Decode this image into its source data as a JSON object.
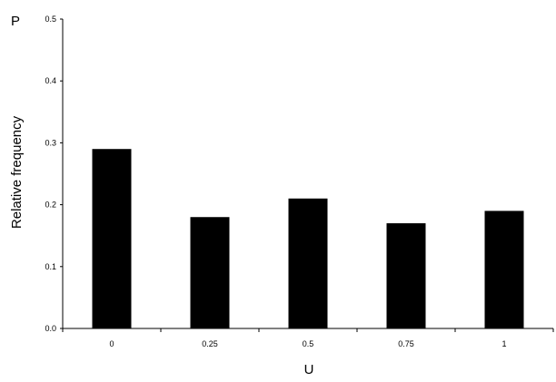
{
  "chart_data": {
    "type": "bar",
    "panel_label": "P",
    "xlabel": "U",
    "ylabel": "Relative frequency",
    "categories": [
      "0",
      "0.25",
      "0.5",
      "0.75",
      "1"
    ],
    "values": [
      0.29,
      0.18,
      0.21,
      0.17,
      0.19
    ],
    "ylim": [
      0,
      0.5
    ],
    "yticks": [
      "0.0",
      "0.1",
      "0.2",
      "0.3",
      "0.4",
      "0.5"
    ],
    "grid": false,
    "bar_color": "#000000"
  }
}
